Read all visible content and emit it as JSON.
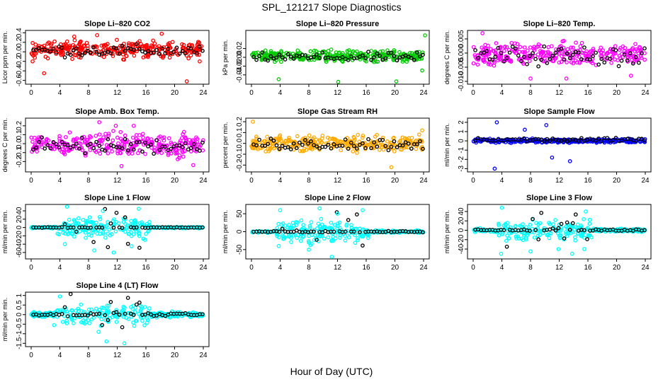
{
  "page": {
    "title": "SPL_121217  Slope Diagnostics",
    "xlabel": "Hour of Day (UTC)"
  },
  "chart_data": [
    {
      "type": "scatter",
      "title": "Slope Li–820 CO2",
      "ylabel": "Licor ppm per min.",
      "color": "#ff0000",
      "x_ticks": [
        0,
        4,
        8,
        12,
        16,
        20,
        24
      ],
      "xlim": [
        0,
        24
      ],
      "ylim": [
        -0.65,
        0.42
      ],
      "y_ticks": [
        -0.6,
        -0.4,
        -0.2,
        0.0,
        0.2,
        0.4
      ],
      "y_tick_labels": [
        "-0.6",
        "-0.4",
        "-0.2",
        "0.0",
        "0.2",
        "0.4"
      ],
      "band": [
        -0.2,
        0.3
      ],
      "black_band": [
        -0.15,
        0.2
      ],
      "outliers": [
        [
          1.8,
          -0.45
        ],
        [
          6,
          0.32
        ],
        [
          9.2,
          0.35
        ],
        [
          18.2,
          0.38
        ],
        [
          21.7,
          -0.62
        ],
        [
          23.5,
          -0.2
        ],
        [
          0.2,
          -0.2
        ]
      ]
    },
    {
      "type": "scatter",
      "title": "Slope Li–820 Pressure",
      "ylabel": "kPa per min.",
      "color": "#00cc00",
      "x_ticks": [
        0,
        4,
        8,
        12,
        16,
        20,
        24
      ],
      "xlim": [
        0,
        24
      ],
      "ylim": [
        -0.058,
        0.058
      ],
      "y_ticks": [
        -0.04,
        -0.02,
        0.0,
        0.02
      ],
      "y_tick_labels": [
        "-0.04",
        "-0.02",
        "0.00",
        "0.02"
      ],
      "band": [
        -0.015,
        0.02
      ],
      "black_band": [
        -0.015,
        0.015
      ],
      "outliers": [
        [
          3.8,
          -0.05
        ],
        [
          12.1,
          -0.056
        ],
        [
          20.2,
          -0.055
        ],
        [
          24.2,
          0.05
        ],
        [
          23.8,
          -0.03
        ],
        [
          0.3,
          0.01
        ]
      ]
    },
    {
      "type": "scatter",
      "title": "Slope Li–820 Temp.",
      "ylabel": "degrees C per min.",
      "color": "#ff00ff",
      "x_ticks": [
        0,
        4,
        8,
        12,
        16,
        20,
        24
      ],
      "xlim": [
        0,
        24
      ],
      "ylim": [
        -0.0105,
        0.0075
      ],
      "y_ticks": [
        -0.01,
        -0.005,
        0.0,
        0.005
      ],
      "y_tick_labels": [
        "-0.010",
        "-0.005",
        "0.000",
        "0.005"
      ],
      "band": [
        -0.006,
        0.005
      ],
      "black_band": [
        -0.006,
        0.004
      ],
      "outliers": [
        [
          1.3,
          0.007
        ],
        [
          3.2,
          0.0035
        ],
        [
          13,
          -0.009
        ],
        [
          22,
          -0.008
        ],
        [
          8,
          -0.009
        ]
      ]
    },
    {
      "type": "scatter",
      "title": "Slope Amb. Box Temp.",
      "ylabel": "degrees C per min.",
      "color": "#ff00ff",
      "x_ticks": [
        0,
        4,
        8,
        12,
        16,
        20,
        24
      ],
      "xlim": [
        0,
        24
      ],
      "ylim": [
        -0.3,
        0.27
      ],
      "y_ticks": [
        -0.2,
        -0.1,
        0.0,
        0.1,
        0.2
      ],
      "y_tick_labels": [
        "-0.2",
        "-0.1",
        "0.0",
        "0.1",
        "0.2"
      ],
      "band": [
        -0.2,
        0.18
      ],
      "black_band": [
        -0.15,
        0.1
      ],
      "outliers": [
        [
          9.5,
          0.24
        ],
        [
          11.8,
          0.2
        ],
        [
          12.6,
          -0.25
        ],
        [
          22.6,
          -0.24
        ],
        [
          14.3,
          0.2
        ]
      ]
    },
    {
      "type": "scatter",
      "title": "Slope Gas Stream RH",
      "ylabel": "percent per min.",
      "color": "#ffaa00",
      "x_ticks": [
        0,
        4,
        8,
        12,
        16,
        20,
        24
      ],
      "xlim": [
        0,
        24
      ],
      "ylim": [
        -0.25,
        0.22
      ],
      "y_ticks": [
        -0.2,
        -0.1,
        0.0,
        0.1,
        0.2
      ],
      "y_tick_labels": [
        "-0.2",
        "-0.1",
        "0.0",
        "0.1",
        "0.2"
      ],
      "band": [
        -0.1,
        0.1
      ],
      "black_band": [
        -0.09,
        0.08
      ],
      "outliers": [
        [
          0.2,
          0.2
        ],
        [
          19.5,
          -0.22
        ],
        [
          23.8,
          0.12
        ]
      ]
    },
    {
      "type": "scatter",
      "title": "Slope Sample Flow",
      "ylabel": "ml/min per min.",
      "color": "#0000ff",
      "x_ticks": [
        0,
        4,
        8,
        12,
        16,
        20,
        24
      ],
      "xlim": [
        0,
        24
      ],
      "ylim": [
        -3.2,
        2.3
      ],
      "y_ticks": [
        -3,
        -2,
        -1,
        0,
        1,
        2
      ],
      "y_tick_labels": [
        "-3",
        "-2",
        "-1",
        "0",
        "1",
        "2"
      ],
      "band": [
        -0.3,
        0.3
      ],
      "black_band": [
        -0.2,
        0.4
      ],
      "outliers": [
        [
          3,
          -3
        ],
        [
          3.3,
          2
        ],
        [
          7.2,
          1.2
        ],
        [
          13.5,
          -2.2
        ],
        [
          11,
          -1.8
        ],
        [
          10.2,
          1.7
        ]
      ]
    },
    {
      "type": "scatter",
      "title": "Slope Line 1 Flow",
      "ylabel": "ml/min per min.",
      "color": "#00ffff",
      "x_ticks": [
        0,
        4,
        8,
        12,
        16,
        20,
        24
      ],
      "xlim": [
        0,
        24
      ],
      "ylim": [
        -72,
        52
      ],
      "y_ticks": [
        -60,
        -40,
        -20,
        0,
        20,
        40
      ],
      "y_tick_labels": [
        "-60",
        "-40",
        "-20",
        "0",
        "20",
        "40"
      ],
      "band": [
        -3,
        3
      ],
      "black_band": [
        0,
        0
      ],
      "outliers": [
        [
          5,
          50
        ],
        [
          4.7,
          -40
        ],
        [
          8.8,
          -55
        ],
        [
          10,
          40
        ],
        [
          11.5,
          -60
        ],
        [
          14,
          -45
        ],
        [
          15,
          45
        ]
      ]
    },
    {
      "type": "scatter",
      "title": "Slope Line 2 Flow",
      "ylabel": "ml/min per min.",
      "color": "#00ffff",
      "x_ticks": [
        0,
        4,
        8,
        12,
        16,
        20,
        24
      ],
      "xlim": [
        0,
        24
      ],
      "ylim": [
        -72,
        72
      ],
      "y_ticks": [
        -50,
        0,
        50
      ],
      "y_tick_labels": [
        "-50",
        "0",
        "50"
      ],
      "band": [
        -5,
        5
      ],
      "black_band": [
        -3,
        3
      ],
      "outliers": [
        [
          4,
          60
        ],
        [
          8,
          -50
        ],
        [
          11.2,
          -70
        ],
        [
          12,
          50
        ],
        [
          15.5,
          60
        ],
        [
          9.5,
          65
        ],
        [
          3.8,
          -40
        ]
      ]
    },
    {
      "type": "scatter",
      "title": "Slope Line 3 Flow",
      "ylabel": "ml/min per min.",
      "color": "#00ffff",
      "x_ticks": [
        0,
        4,
        8,
        12,
        16,
        20,
        24
      ],
      "xlim": [
        0,
        24
      ],
      "ylim": [
        -58,
        52
      ],
      "y_ticks": [
        -40,
        -20,
        0,
        20,
        40
      ],
      "y_tick_labels": [
        "-40",
        "-20",
        "0",
        "20",
        "40"
      ],
      "band": [
        -5,
        5
      ],
      "black_band": [
        -3,
        3
      ],
      "outliers": [
        [
          3.9,
          -50
        ],
        [
          4,
          48
        ],
        [
          8,
          -45
        ],
        [
          11.9,
          -40
        ],
        [
          13.8,
          -50
        ],
        [
          15.7,
          40
        ],
        [
          15.5,
          -40
        ]
      ]
    },
    {
      "type": "scatter",
      "title": "Slope Line 4 (LT) Flow",
      "ylabel": "ml/min per min.",
      "color": "#00ffff",
      "x_ticks": [
        0,
        4,
        8,
        12,
        16,
        20,
        24
      ],
      "xlim": [
        0,
        24
      ],
      "ylim": [
        -1.6,
        1.1
      ],
      "y_ticks": [
        -1.5,
        -1.0,
        -0.5,
        0.0,
        0.5,
        1.0
      ],
      "y_tick_labels": [
        "-1.5",
        "-1",
        "-0.5",
        "0",
        "0.5",
        "1"
      ],
      "band": [
        -0.2,
        0.2
      ],
      "black_band": [
        -0.1,
        0.1
      ],
      "outliers": [
        [
          4,
          0.95
        ],
        [
          10.5,
          -1.4
        ],
        [
          13,
          -1.5
        ],
        [
          3.2,
          -0.55
        ],
        [
          9.4,
          -0.9
        ]
      ]
    }
  ]
}
